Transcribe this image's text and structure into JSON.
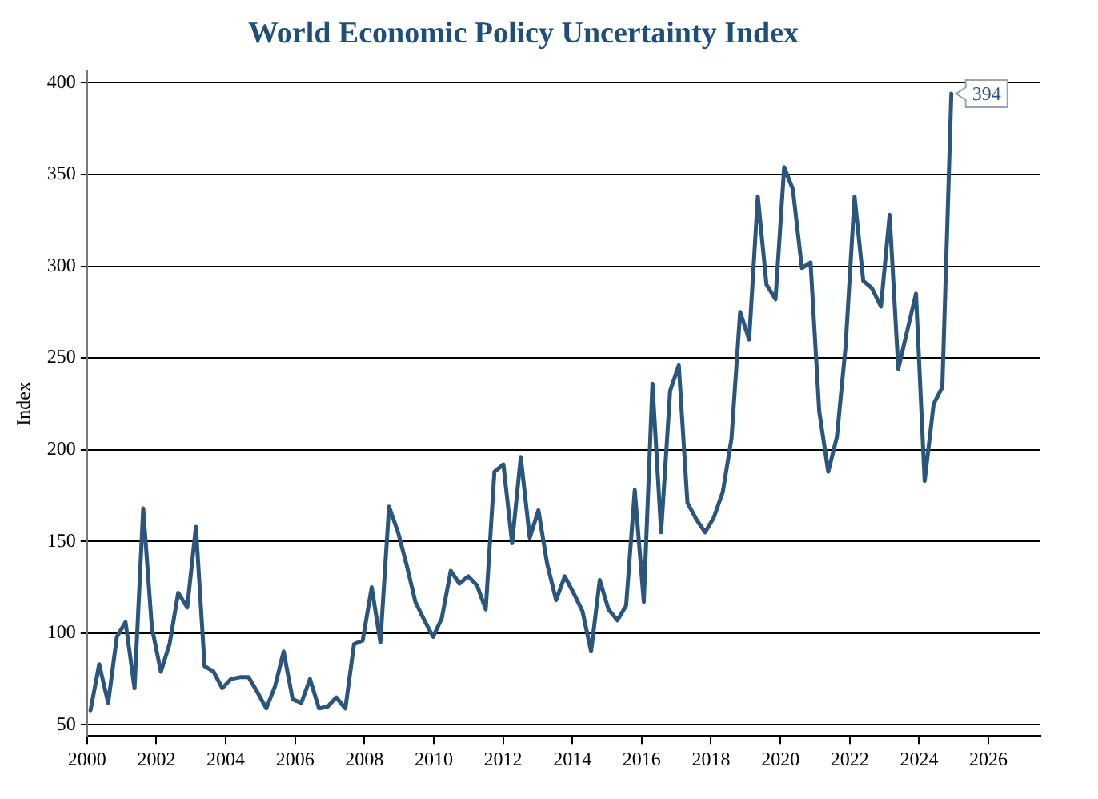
{
  "chart_data": {
    "type": "line",
    "title": "World Economic Policy Uncertainty Index",
    "ylabel": "Index",
    "x": [
      2000.1,
      2000.35,
      2000.61,
      2000.86,
      2001.11,
      2001.37,
      2001.62,
      2001.87,
      2002.13,
      2002.38,
      2002.63,
      2002.89,
      2003.14,
      2003.39,
      2003.65,
      2003.9,
      2004.15,
      2004.41,
      2004.66,
      2004.91,
      2005.17,
      2005.42,
      2005.67,
      2005.93,
      2006.18,
      2006.43,
      2006.69,
      2006.94,
      2007.19,
      2007.45,
      2007.7,
      2007.95,
      2008.21,
      2008.46,
      2008.71,
      2008.97,
      2009.22,
      2009.47,
      2009.73,
      2009.98,
      2010.23,
      2010.49,
      2010.74,
      2010.99,
      2011.25,
      2011.5,
      2011.75,
      2012.01,
      2012.26,
      2012.51,
      2012.77,
      2013.02,
      2013.27,
      2013.53,
      2013.78,
      2014.03,
      2014.29,
      2014.54,
      2014.79,
      2015.04,
      2015.3,
      2015.55,
      2015.8,
      2016.06,
      2016.31,
      2016.56,
      2016.82,
      2017.07,
      2017.32,
      2017.58,
      2017.83,
      2018.08,
      2018.34,
      2018.59,
      2018.84,
      2019.1,
      2019.35,
      2019.6,
      2019.86,
      2020.11,
      2020.36,
      2020.62,
      2020.87,
      2021.12,
      2021.38,
      2021.63,
      2021.88,
      2022.14,
      2022.39,
      2022.64,
      2022.9,
      2023.15,
      2023.4,
      2023.66,
      2023.91,
      2024.16,
      2024.42,
      2024.67,
      2024.93
    ],
    "series": [
      {
        "color": "#2a567e",
        "values": [
          58,
          83,
          62,
          98,
          106,
          70,
          168,
          103,
          79,
          94,
          122,
          114,
          158,
          82,
          79,
          70,
          75,
          76,
          76,
          68,
          59,
          71,
          90,
          64,
          62,
          75,
          59,
          60,
          65,
          59,
          94,
          96,
          125,
          95,
          169,
          155,
          137,
          117,
          107,
          98,
          108,
          134,
          127,
          131,
          126,
          113,
          188,
          192,
          149,
          196,
          152,
          167,
          138,
          118,
          131,
          122,
          112,
          90,
          129,
          113,
          107,
          115,
          178,
          117,
          236,
          155,
          232,
          246,
          171,
          162,
          155,
          163,
          177,
          206,
          275,
          260,
          338,
          290,
          282,
          354,
          342,
          299,
          302,
          221,
          188,
          207,
          256,
          338,
          292,
          288,
          278,
          328,
          244,
          265,
          285,
          183,
          225,
          234,
          394
        ]
      }
    ],
    "xlim": [
      2000,
      2027.5
    ],
    "xticks": [
      2000,
      2002,
      2004,
      2006,
      2008,
      2010,
      2012,
      2014,
      2016,
      2018,
      2020,
      2022,
      2024,
      2026
    ],
    "ylim": [
      44,
      406
    ],
    "yticks": [
      50,
      100,
      150,
      200,
      250,
      300,
      350,
      400
    ],
    "grid": "y",
    "legend": false,
    "marker": "none",
    "line_style": "solid",
    "annotations": [
      {
        "text": "394",
        "x": 2024.93,
        "y": 394
      }
    ]
  }
}
